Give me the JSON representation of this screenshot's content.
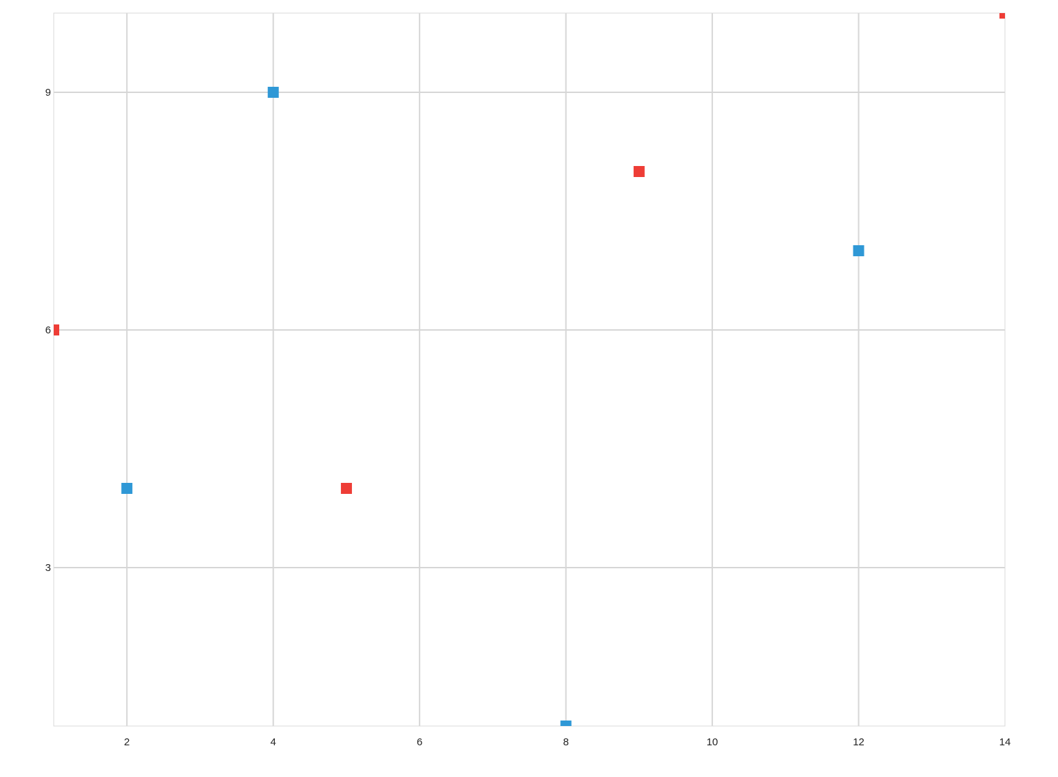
{
  "chart_data": {
    "type": "scatter",
    "title": "",
    "xlabel": "",
    "ylabel": "",
    "xlim": [
      1,
      14
    ],
    "ylim": [
      1,
      10
    ],
    "x_ticks": [
      2,
      4,
      6,
      8,
      10,
      12,
      14
    ],
    "y_ticks": [
      3,
      6,
      9
    ],
    "grid": true,
    "legend": "none",
    "marker": "square",
    "series": [
      {
        "color": "#2f98d6",
        "points": [
          {
            "x": 2,
            "y": 4
          },
          {
            "x": 4,
            "y": 9
          },
          {
            "x": 8,
            "y": 1
          },
          {
            "x": 12,
            "y": 7
          }
        ]
      },
      {
        "color": "#ee3d36",
        "points": [
          {
            "x": 1,
            "y": 6
          },
          {
            "x": 5,
            "y": 4
          },
          {
            "x": 9,
            "y": 8
          },
          {
            "x": 14,
            "y": 10
          }
        ]
      }
    ]
  }
}
